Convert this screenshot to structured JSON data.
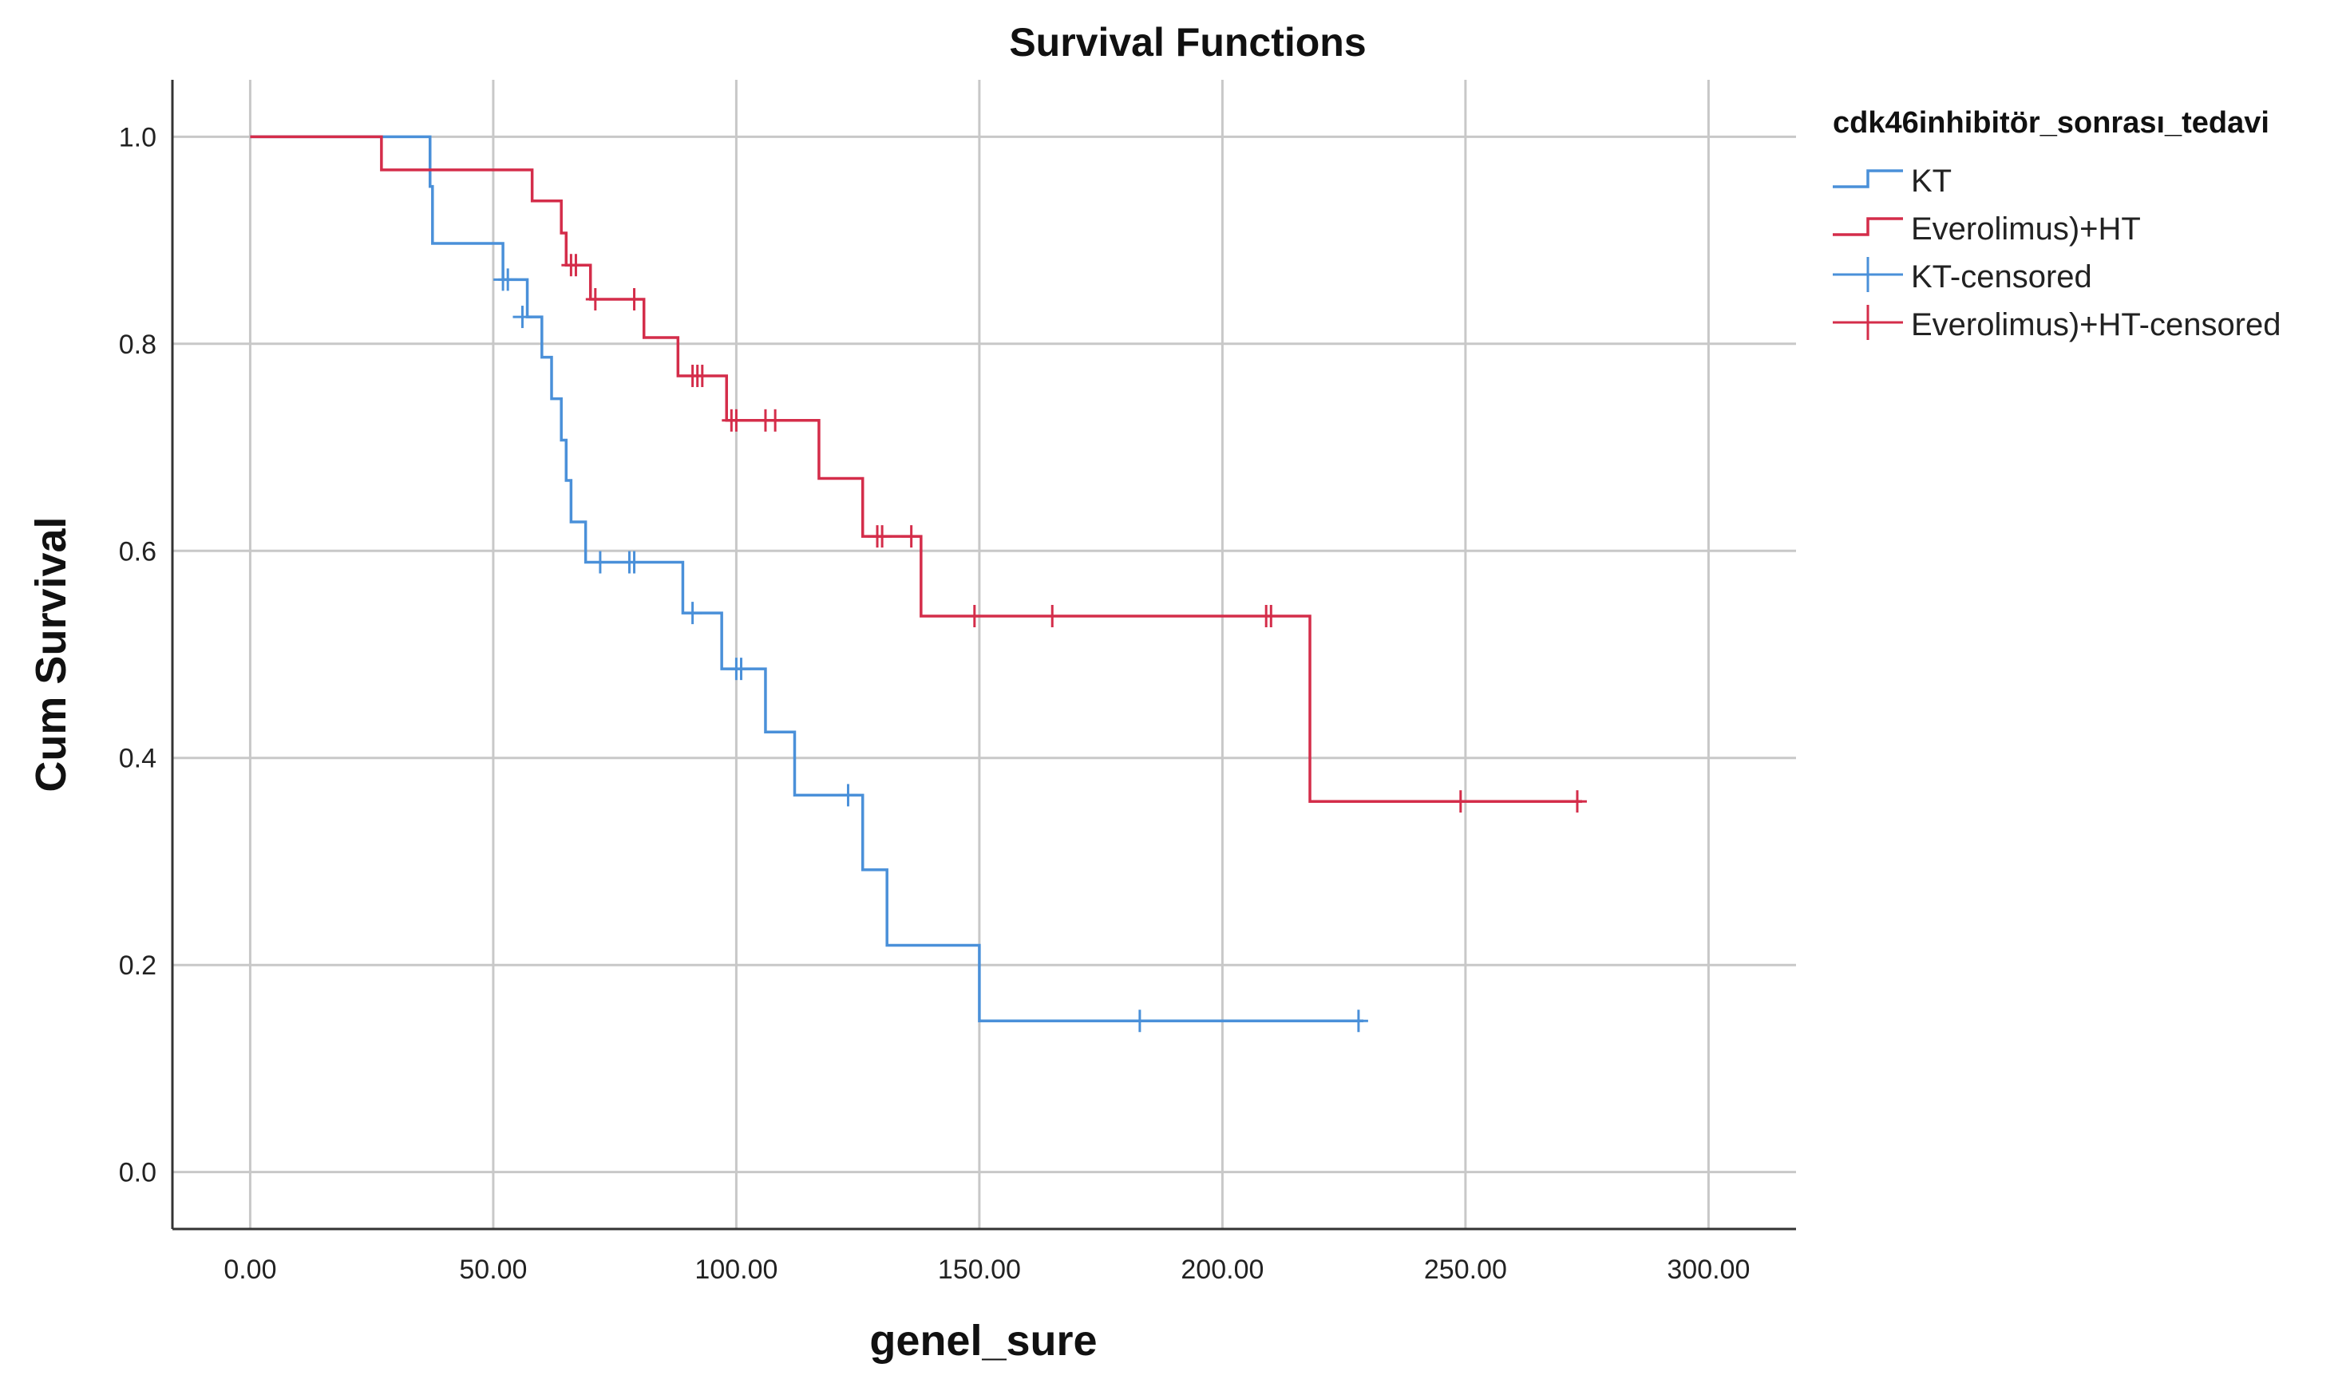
{
  "chart_data": {
    "type": "line",
    "subtype": "kaplan-meier step",
    "title": "Survival Functions",
    "xlabel": "genel_sure",
    "ylabel": "Cum Survival",
    "xlim": [
      -16,
      318
    ],
    "ylim": [
      -0.055,
      1.055
    ],
    "x_ticks": [
      0,
      50,
      100,
      150,
      200,
      250,
      300
    ],
    "x_tick_labels": [
      "0.00",
      "50.00",
      "100.00",
      "150.00",
      "200.00",
      "250.00",
      "300.00"
    ],
    "y_ticks": [
      0,
      0.2,
      0.4,
      0.6,
      0.8,
      1.0
    ],
    "y_tick_labels": [
      "0.0",
      "0.2",
      "0.4",
      "0.6",
      "0.8",
      "1.0"
    ],
    "grid": true,
    "legend": {
      "title": "cdk46inhibitör_sonrası_tedavi",
      "position": "right",
      "entries": [
        {
          "label": "KT",
          "kind": "line",
          "series": 0
        },
        {
          "label": "Everolimus)+HT",
          "kind": "line",
          "series": 1
        },
        {
          "label": "KT-censored",
          "kind": "marker",
          "series": 0
        },
        {
          "label": "Everolimus)+HT-censored",
          "kind": "marker",
          "series": 1
        }
      ]
    },
    "series": [
      {
        "name": "KT",
        "color": "#4a90d9",
        "x": [
          0,
          37,
          37.5,
          52,
          57,
          60,
          62,
          64,
          65,
          66,
          69,
          70,
          71,
          89,
          97,
          106,
          112,
          126,
          131,
          150,
          229
        ],
        "y": [
          1.0,
          0.952,
          0.897,
          0.862,
          0.826,
          0.787,
          0.747,
          0.707,
          0.668,
          0.628,
          0.589,
          0.589,
          0.589,
          0.54,
          0.486,
          0.425,
          0.364,
          0.292,
          0.219,
          0.146,
          0.146
        ],
        "censored_x": [
          52,
          53,
          56,
          72,
          78,
          79,
          91,
          100,
          101,
          123,
          183,
          228
        ],
        "censored_y": [
          0.862,
          0.862,
          0.826,
          0.589,
          0.589,
          0.589,
          0.54,
          0.486,
          0.486,
          0.364,
          0.146,
          0.146
        ]
      },
      {
        "name": "Everolimus)+HT",
        "color": "#d42d4a",
        "x": [
          0,
          27,
          58,
          64,
          65,
          70,
          81,
          88,
          98,
          117,
          126,
          138,
          218,
          274
        ],
        "y": [
          1.0,
          0.968,
          0.938,
          0.907,
          0.876,
          0.843,
          0.806,
          0.769,
          0.726,
          0.67,
          0.614,
          0.537,
          0.358,
          0.358
        ],
        "censored_x": [
          66,
          67,
          71,
          79,
          91,
          92,
          93,
          99,
          100,
          106,
          108,
          129,
          130,
          136,
          149,
          165,
          209,
          210,
          249,
          273
        ],
        "censored_y": [
          0.876,
          0.876,
          0.843,
          0.843,
          0.769,
          0.769,
          0.769,
          0.726,
          0.726,
          0.726,
          0.726,
          0.614,
          0.614,
          0.614,
          0.537,
          0.537,
          0.537,
          0.537,
          0.358,
          0.358
        ]
      }
    ]
  }
}
